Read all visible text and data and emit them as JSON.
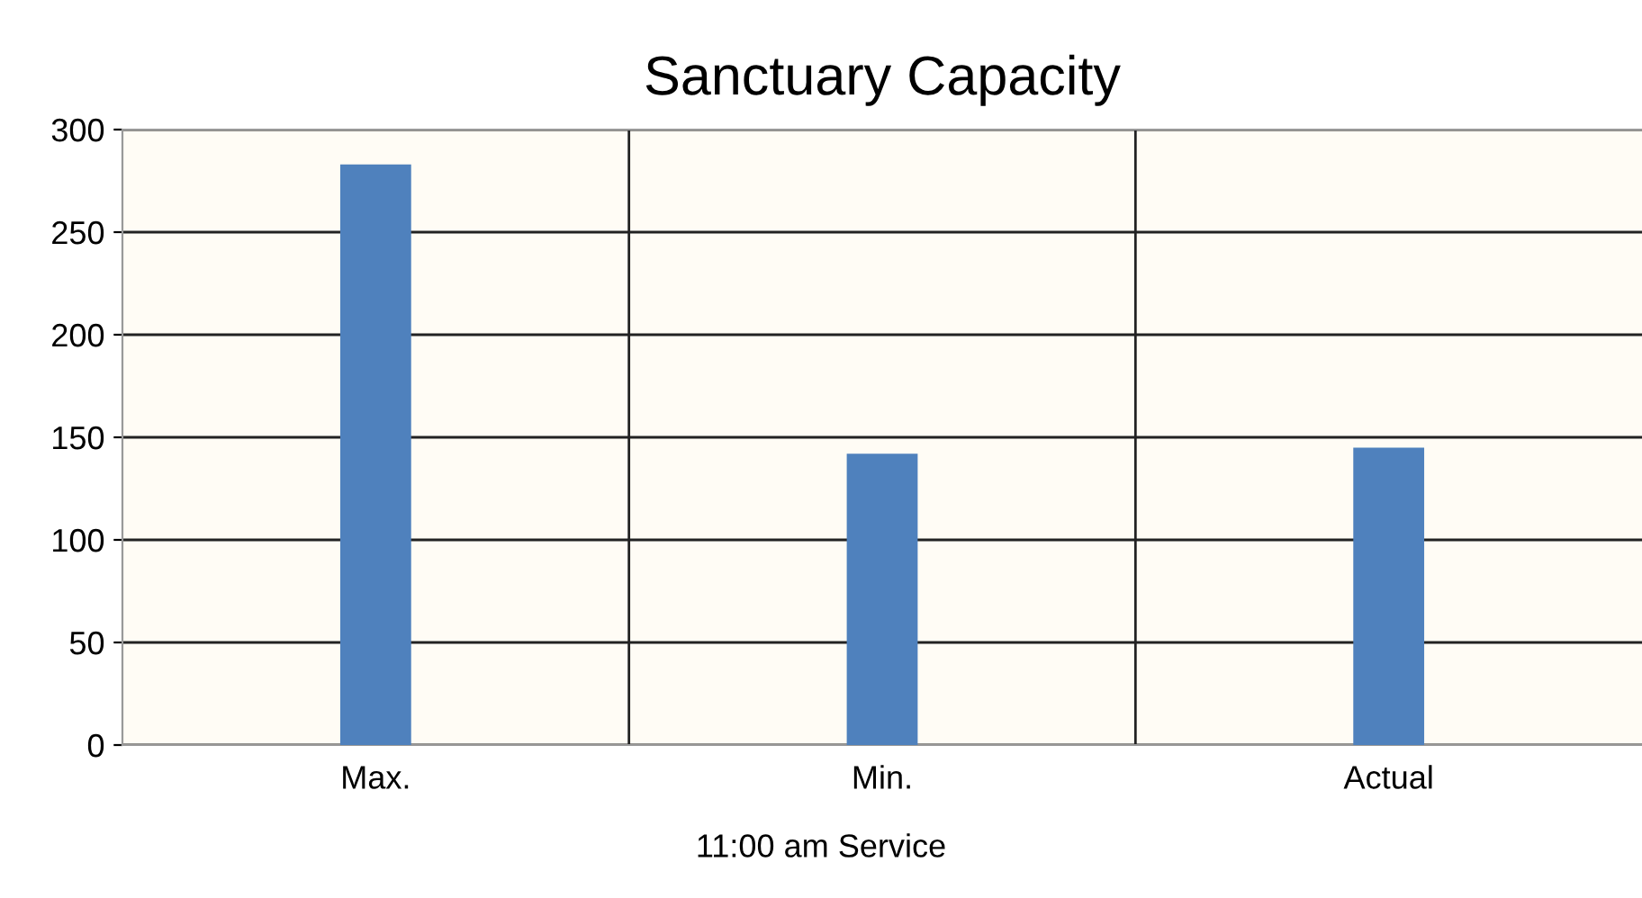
{
  "chart_data": {
    "type": "bar",
    "title": "Sanctuary Capacity",
    "categories": [
      "Max.",
      "Min.",
      "Actual"
    ],
    "values": [
      283,
      142,
      145
    ],
    "color": "#4f81bd",
    "ylim": [
      0,
      300
    ],
    "yticks": [
      0,
      50,
      100,
      150,
      200,
      250,
      300
    ],
    "grid": true,
    "annotations": [
      "11:00 am Service"
    ]
  }
}
